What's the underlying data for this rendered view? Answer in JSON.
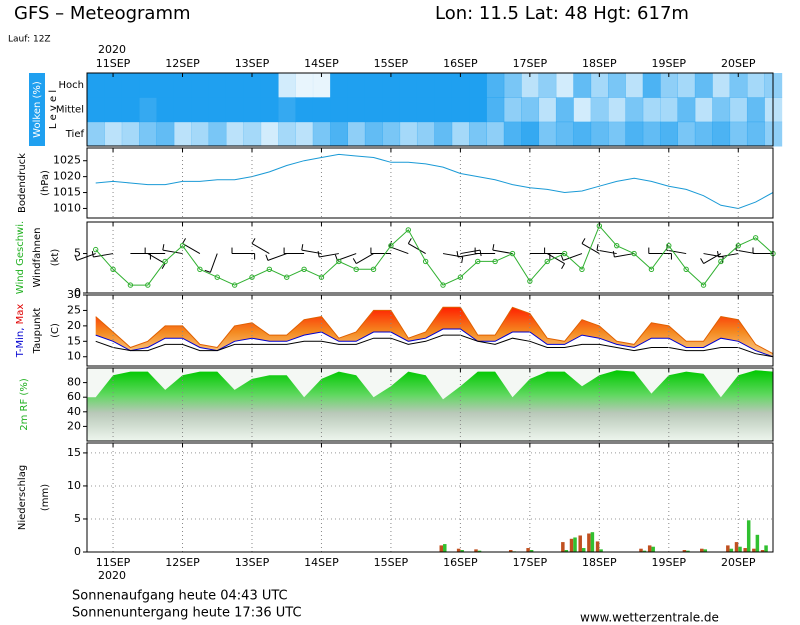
{
  "header": {
    "title": "GFS – Meteogramm",
    "location": "Lon: 11.5  Lat: 48  Hgt: 617m",
    "run": "Lauf: 12Z",
    "year": "2020"
  },
  "footer": {
    "sunrise": "Sonnenaufgang heute 04:43 UTC",
    "sunset": "Sonnenuntergang heute 17:36 UTC",
    "source": "www.wetterzentrale.de"
  },
  "time_axis": {
    "xlim": [
      10.625,
      20.5
    ],
    "xticks": [
      {
        "value": 11,
        "label": "11SEP"
      },
      {
        "value": 12,
        "label": "12SEP"
      },
      {
        "value": 13,
        "label": "13SEP"
      },
      {
        "value": 14,
        "label": "14SEP"
      },
      {
        "value": 15,
        "label": "15SEP"
      },
      {
        "value": 16,
        "label": "16SEP"
      },
      {
        "value": 17,
        "label": "17SEP"
      },
      {
        "value": 18,
        "label": "18SEP"
      },
      {
        "value": 19,
        "label": "19SEP"
      },
      {
        "value": 20,
        "label": "20SEP"
      }
    ],
    "x": [
      10.75,
      11,
      11.25,
      11.5,
      11.75,
      12,
      12.25,
      12.5,
      12.75,
      13,
      13.25,
      13.5,
      13.75,
      14,
      14.25,
      14.5,
      14.75,
      15,
      15.25,
      15.5,
      15.75,
      16,
      16.25,
      16.5,
      16.75,
      17,
      17.25,
      17.5,
      17.75,
      18,
      18.25,
      18.5,
      18.75,
      19,
      19.25,
      19.5,
      19.75,
      20,
      20.25,
      20.5
    ]
  },
  "chart_data": [
    {
      "type": "heatmap",
      "ylabels": [
        [
          {
            "text": "Wolken (%)",
            "color": "#ffffff"
          }
        ],
        [
          {
            "text": "L e v e l",
            "color": "#000000"
          }
        ]
      ],
      "background": "#1fa0f0",
      "levels": [
        "Hoch",
        "Mittel",
        "Tief"
      ],
      "color": "#1fa0f0",
      "series": [
        {
          "values": [
            100,
            100,
            100,
            100,
            100,
            100,
            100,
            100,
            100,
            100,
            100,
            20,
            10,
            10,
            100,
            100,
            100,
            100,
            100,
            100,
            100,
            100,
            100,
            80,
            60,
            30,
            50,
            20,
            70,
            40,
            60,
            30,
            80,
            50,
            40,
            70,
            30,
            60,
            40,
            50
          ]
        },
        {
          "values": [
            100,
            100,
            100,
            90,
            100,
            100,
            100,
            100,
            100,
            100,
            100,
            90,
            100,
            100,
            100,
            100,
            100,
            100,
            100,
            100,
            100,
            100,
            100,
            80,
            50,
            60,
            30,
            70,
            20,
            50,
            30,
            60,
            40,
            40,
            70,
            30,
            60,
            40,
            70,
            30
          ]
        },
        {
          "values": [
            50,
            30,
            40,
            60,
            70,
            30,
            40,
            60,
            30,
            40,
            20,
            40,
            30,
            60,
            80,
            50,
            70,
            60,
            40,
            50,
            70,
            40,
            60,
            50,
            80,
            90,
            60,
            70,
            80,
            70,
            60,
            80,
            70,
            80,
            60,
            70,
            80,
            60,
            70,
            50
          ]
        }
      ]
    },
    {
      "type": "line",
      "ylabels": [
        [
          {
            "text": "Bodendruck",
            "color": "#000000"
          }
        ],
        [
          {
            "text": "(hPa)",
            "color": "#000000"
          }
        ]
      ],
      "ylim": [
        1007,
        1029
      ],
      "yticks": [
        1010,
        1015,
        1020,
        1025
      ],
      "series": [
        {
          "color": "#1a9ad6",
          "values": [
            1018,
            1018.5,
            1018,
            1017.5,
            1017.5,
            1018.5,
            1018.5,
            1019,
            1019,
            1020,
            1021.5,
            1023.5,
            1025,
            1026,
            1027,
            1026.5,
            1026,
            1024.5,
            1024.5,
            1024,
            1023,
            1021,
            1020,
            1019,
            1017.5,
            1016.5,
            1016,
            1015,
            1015.5,
            1017,
            1018.5,
            1019.5,
            1018.5,
            1017,
            1016,
            1014,
            1011,
            1010,
            1012,
            1015
          ]
        }
      ]
    },
    {
      "type": "wind",
      "ylabels": [
        [
          {
            "text": "Wind Geschwi.",
            "color": "#20b020"
          }
        ],
        [
          {
            "text": "Windfahnen",
            "color": "#000000"
          }
        ],
        [
          {
            "text": "(kt)",
            "color": "#000000"
          }
        ]
      ],
      "ylim": [
        0,
        9
      ],
      "yticks": [
        0,
        5
      ],
      "series": [
        {
          "color": "#30b030",
          "values": [
            5.5,
            3,
            1,
            1,
            4,
            6,
            3,
            2,
            1,
            2,
            3,
            2,
            3,
            2,
            4,
            3,
            3,
            6,
            8,
            4,
            1,
            2,
            4,
            4,
            5,
            1.5,
            4,
            5,
            3,
            8.5,
            6,
            5,
            3,
            6,
            3,
            1,
            4,
            6,
            7,
            5
          ]
        }
      ],
      "directions": [
        250,
        260,
        90,
        120,
        270,
        280,
        300,
        200,
        90,
        270,
        300,
        250,
        270,
        280,
        260,
        250,
        240,
        270,
        290,
        300,
        100,
        80,
        260,
        270,
        280,
        90,
        120,
        270,
        250,
        300,
        280,
        260,
        90,
        270,
        280,
        100,
        240,
        260,
        280,
        270
      ]
    },
    {
      "type": "temperature",
      "ylabels": [
        [
          {
            "text": "T-Min, ",
            "color": "#0000d0"
          },
          {
            "text": "Max",
            "color": "#e00000"
          }
        ],
        [
          {
            "text": "Taupunkt",
            "color": "#000000"
          }
        ],
        [
          {
            "text": "(C)",
            "color": "#000000"
          }
        ]
      ],
      "ylim": [
        7,
        30
      ],
      "yticks": [
        10,
        15,
        20,
        25,
        30
      ],
      "series": [
        {
          "color": "#e06000",
          "values": [
            23,
            18,
            13,
            15,
            20,
            20,
            14,
            13,
            20,
            21,
            17,
            17,
            22,
            23,
            16,
            18,
            25,
            25,
            16,
            18,
            26,
            26,
            17,
            17,
            26,
            24,
            16,
            15,
            22,
            20,
            15,
            14,
            21,
            20,
            15,
            15,
            23,
            22,
            14,
            11
          ]
        },
        {
          "color": "#0000d0",
          "values": [
            17,
            15,
            12,
            13,
            16,
            16,
            13,
            12,
            15,
            16,
            15,
            15,
            17,
            18,
            15,
            15,
            18,
            18,
            15,
            16,
            19,
            19,
            15,
            15,
            18,
            18,
            14,
            14,
            17,
            16,
            14,
            13,
            16,
            16,
            13,
            13,
            16,
            15,
            12,
            10
          ]
        },
        {
          "color": "#000000",
          "values": [
            15,
            13,
            12,
            12,
            14,
            14,
            12,
            12,
            14,
            14,
            14,
            14,
            15,
            15,
            14,
            14,
            16,
            16,
            14,
            15,
            17,
            17,
            15,
            14,
            16,
            15,
            13,
            13,
            14,
            14,
            13,
            12,
            13,
            13,
            12,
            12,
            13,
            13,
            11,
            10
          ]
        }
      ]
    },
    {
      "type": "area",
      "ylabels": [
        [
          {
            "text": "2m RF (%)",
            "color": "#20b020"
          }
        ]
      ],
      "ylim": [
        0,
        100
      ],
      "yticks": [
        20,
        40,
        60,
        80
      ],
      "series": [
        {
          "color": "#00c800",
          "values": [
            60,
            90,
            95,
            95,
            70,
            90,
            95,
            95,
            70,
            85,
            90,
            90,
            60,
            85,
            95,
            90,
            60,
            75,
            95,
            90,
            57,
            75,
            95,
            95,
            60,
            85,
            95,
            95,
            75,
            90,
            97,
            95,
            65,
            90,
            95,
            92,
            60,
            90,
            97,
            95
          ]
        }
      ]
    },
    {
      "type": "bar",
      "ylabels": [
        [
          {
            "text": "Niederschlag",
            "color": "#000000"
          }
        ],
        [
          {
            "text": "(mm)",
            "color": "#000000"
          }
        ]
      ],
      "ylim": [
        0,
        16.5
      ],
      "yticks": [
        0,
        5,
        10,
        15
      ],
      "grid": true,
      "x": [
        15.75,
        16.0,
        16.25,
        16.75,
        17.0,
        17.5,
        17.625,
        17.75,
        17.875,
        18.0,
        18.625,
        18.75,
        19.25,
        19.5,
        19.875,
        20.0,
        20.125,
        20.25,
        20.375
      ],
      "series": [
        {
          "color": "#c05020",
          "values": [
            1.0,
            0.5,
            0.4,
            0.3,
            0.6,
            1.5,
            2.0,
            2.5,
            2.8,
            1.6,
            0.5,
            1.0,
            0.3,
            0.5,
            1.0,
            1.5,
            0.6,
            0.5,
            0.3
          ]
        },
        {
          "color": "#30c030",
          "values": [
            1.2,
            0.3,
            0.2,
            0.1,
            0.3,
            0.3,
            2.2,
            0.6,
            3.0,
            0.4,
            0.2,
            0.8,
            0.2,
            0.4,
            0.5,
            0.8,
            4.8,
            2.6,
            1.0
          ]
        }
      ]
    }
  ]
}
